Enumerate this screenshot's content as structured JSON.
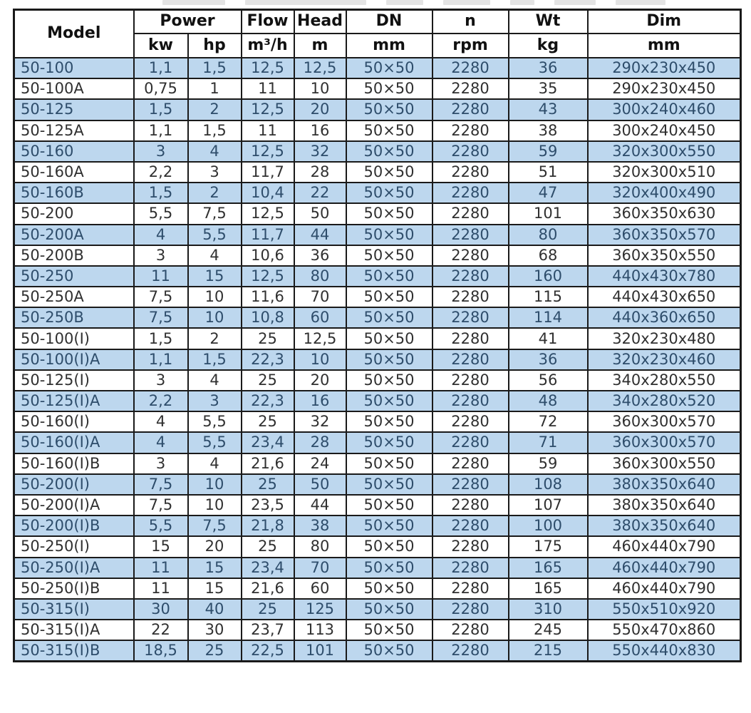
{
  "table": {
    "header": {
      "model": "Model",
      "power": "Power",
      "flow": "Flow",
      "head": "Head",
      "dn": "DN",
      "n": "n",
      "wt": "Wt",
      "dim": "Dim"
    },
    "units": {
      "kw": "kw",
      "hp": "hp",
      "flow": "m³/h",
      "head": "m",
      "dn": "mm",
      "n": "rpm",
      "wt": "kg",
      "dim": "mm"
    },
    "column_keys": [
      "model",
      "kw",
      "hp",
      "flow",
      "head",
      "dn",
      "n",
      "wt",
      "dim"
    ],
    "rows": [
      {
        "model": "50-100",
        "kw": "1,1",
        "hp": "1,5",
        "flow": "12,5",
        "head": "12,5",
        "dn": "50×50",
        "n": "2280",
        "wt": "36",
        "dim": "290x230x450"
      },
      {
        "model": "50-100A",
        "kw": "0,75",
        "hp": "1",
        "flow": "11",
        "head": "10",
        "dn": "50×50",
        "n": "2280",
        "wt": "35",
        "dim": "290x230x450"
      },
      {
        "model": "50-125",
        "kw": "1,5",
        "hp": "2",
        "flow": "12,5",
        "head": "20",
        "dn": "50×50",
        "n": "2280",
        "wt": "43",
        "dim": "300x240x460"
      },
      {
        "model": "50-125A",
        "kw": "1,1",
        "hp": "1,5",
        "flow": "11",
        "head": "16",
        "dn": "50×50",
        "n": "2280",
        "wt": "38",
        "dim": "300x240x450"
      },
      {
        "model": "50-160",
        "kw": "3",
        "hp": "4",
        "flow": "12,5",
        "head": "32",
        "dn": "50×50",
        "n": "2280",
        "wt": "59",
        "dim": "320x300x550"
      },
      {
        "model": "50-160A",
        "kw": "2,2",
        "hp": "3",
        "flow": "11,7",
        "head": "28",
        "dn": "50×50",
        "n": "2280",
        "wt": "51",
        "dim": "320x300x510"
      },
      {
        "model": "50-160B",
        "kw": "1,5",
        "hp": "2",
        "flow": "10,4",
        "head": "22",
        "dn": "50×50",
        "n": "2280",
        "wt": "47",
        "dim": "320x400x490"
      },
      {
        "model": "50-200",
        "kw": "5,5",
        "hp": "7,5",
        "flow": "12,5",
        "head": "50",
        "dn": "50×50",
        "n": "2280",
        "wt": "101",
        "dim": "360x350x630"
      },
      {
        "model": "50-200A",
        "kw": "4",
        "hp": "5,5",
        "flow": "11,7",
        "head": "44",
        "dn": "50×50",
        "n": "2280",
        "wt": "80",
        "dim": "360x350x570"
      },
      {
        "model": "50-200B",
        "kw": "3",
        "hp": "4",
        "flow": "10,6",
        "head": "36",
        "dn": "50×50",
        "n": "2280",
        "wt": "68",
        "dim": "360x350x550"
      },
      {
        "model": "50-250",
        "kw": "11",
        "hp": "15",
        "flow": "12,5",
        "head": "80",
        "dn": "50×50",
        "n": "2280",
        "wt": "160",
        "dim": "440x430x780"
      },
      {
        "model": "50-250A",
        "kw": "7,5",
        "hp": "10",
        "flow": "11,6",
        "head": "70",
        "dn": "50×50",
        "n": "2280",
        "wt": "115",
        "dim": "440x430x650"
      },
      {
        "model": "50-250B",
        "kw": "7,5",
        "hp": "10",
        "flow": "10,8",
        "head": "60",
        "dn": "50×50",
        "n": "2280",
        "wt": "114",
        "dim": "440x360x650"
      },
      {
        "model": "50-100(I)",
        "kw": "1,5",
        "hp": "2",
        "flow": "25",
        "head": "12,5",
        "dn": "50×50",
        "n": "2280",
        "wt": "41",
        "dim": "320x230x480"
      },
      {
        "model": "50-100(I)A",
        "kw": "1,1",
        "hp": "1,5",
        "flow": "22,3",
        "head": "10",
        "dn": "50×50",
        "n": "2280",
        "wt": "36",
        "dim": "320x230x460"
      },
      {
        "model": "50-125(I)",
        "kw": "3",
        "hp": "4",
        "flow": "25",
        "head": "20",
        "dn": "50×50",
        "n": "2280",
        "wt": "56",
        "dim": "340x280x550"
      },
      {
        "model": "50-125(I)A",
        "kw": "2,2",
        "hp": "3",
        "flow": "22,3",
        "head": "16",
        "dn": "50×50",
        "n": "2280",
        "wt": "48",
        "dim": "340x280x520"
      },
      {
        "model": "50-160(I)",
        "kw": "4",
        "hp": "5,5",
        "flow": "25",
        "head": "32",
        "dn": "50×50",
        "n": "2280",
        "wt": "72",
        "dim": "360x300x570"
      },
      {
        "model": "50-160(I)A",
        "kw": "4",
        "hp": "5,5",
        "flow": "23,4",
        "head": "28",
        "dn": "50×50",
        "n": "2280",
        "wt": "71",
        "dim": "360x300x570"
      },
      {
        "model": "50-160(I)B",
        "kw": "3",
        "hp": "4",
        "flow": "21,6",
        "head": "24",
        "dn": "50×50",
        "n": "2280",
        "wt": "59",
        "dim": "360x300x550"
      },
      {
        "model": "50-200(I)",
        "kw": "7,5",
        "hp": "10",
        "flow": "25",
        "head": "50",
        "dn": "50×50",
        "n": "2280",
        "wt": "108",
        "dim": "380x350x640"
      },
      {
        "model": "50-200(I)A",
        "kw": "7,5",
        "hp": "10",
        "flow": "23,5",
        "head": "44",
        "dn": "50×50",
        "n": "2280",
        "wt": "107",
        "dim": "380x350x640"
      },
      {
        "model": "50-200(I)B",
        "kw": "5,5",
        "hp": "7,5",
        "flow": "21,8",
        "head": "38",
        "dn": "50×50",
        "n": "2280",
        "wt": "100",
        "dim": "380x350x640"
      },
      {
        "model": "50-250(I)",
        "kw": "15",
        "hp": "20",
        "flow": "25",
        "head": "80",
        "dn": "50×50",
        "n": "2280",
        "wt": "175",
        "dim": "460x440x790"
      },
      {
        "model": "50-250(I)A",
        "kw": "11",
        "hp": "15",
        "flow": "23,4",
        "head": "70",
        "dn": "50×50",
        "n": "2280",
        "wt": "165",
        "dim": "460x440x790"
      },
      {
        "model": "50-250(I)B",
        "kw": "11",
        "hp": "15",
        "flow": "21,6",
        "head": "60",
        "dn": "50×50",
        "n": "2280",
        "wt": "165",
        "dim": "460x440x790"
      },
      {
        "model": "50-315(I)",
        "kw": "30",
        "hp": "40",
        "flow": "25",
        "head": "125",
        "dn": "50×50",
        "n": "2280",
        "wt": "310",
        "dim": "550x510x920"
      },
      {
        "model": "50-315(I)A",
        "kw": "22",
        "hp": "30",
        "flow": "23,7",
        "head": "113",
        "dn": "50×50",
        "n": "2280",
        "wt": "245",
        "dim": "550x470x860"
      },
      {
        "model": "50-315(I)B",
        "kw": "18,5",
        "hp": "25",
        "flow": "22,5",
        "head": "101",
        "dn": "50×50",
        "n": "2280",
        "wt": "215",
        "dim": "550x440x830"
      }
    ]
  },
  "colors": {
    "row_stripe": "#bdd7ee",
    "stripe_text": "#2e4d6b",
    "text": "#303030",
    "border": "#1a1a1a"
  }
}
